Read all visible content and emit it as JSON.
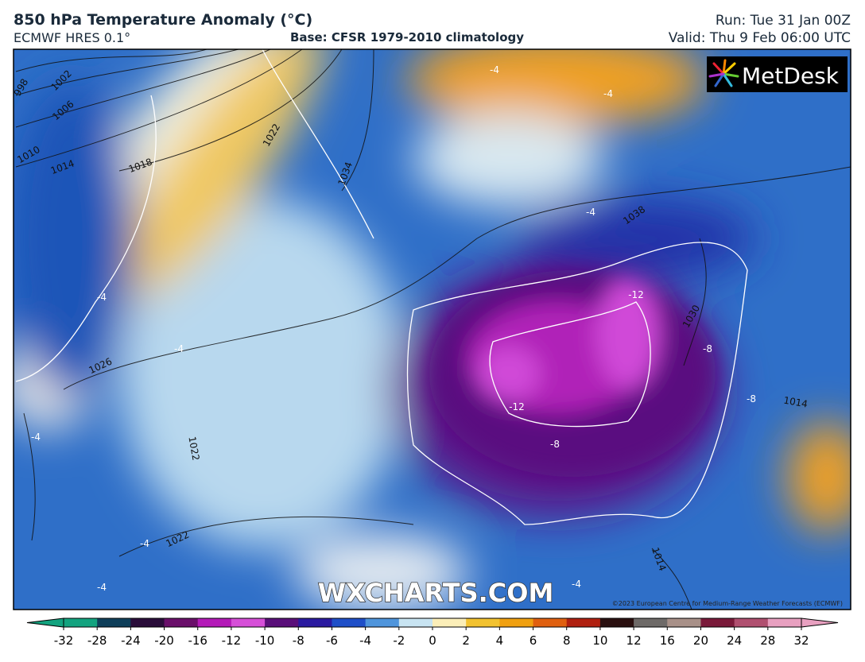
{
  "header": {
    "title": "850 hPa Temperature Anomaly (°C)",
    "model": "ECMWF HRES 0.1°",
    "base": "Base: CFSR 1979-2010 climatology",
    "run": "Run: Tue 31 Jan 00Z",
    "valid": "Valid: Thu 9 Feb 06:00 UTC"
  },
  "map": {
    "logo": "MetDesk",
    "watermark": "WXCHARTS.COM",
    "copyright": "©2023 European Centre for Medium-Range Weather Forecasts (ECMWF)",
    "contour_labels": [
      "998",
      "1002",
      "1006",
      "1010",
      "1014",
      "1018",
      "1022",
      "1034",
      "1026",
      "1022",
      "1022",
      "1038",
      "1030",
      "1014",
      "1014",
      "-4",
      "-4",
      "-4",
      "-4",
      "-4",
      "-4",
      "-4",
      "-4",
      "-4",
      "-8",
      "-8",
      "-8",
      "-12",
      "-12"
    ]
  },
  "colorbar": {
    "ticks": [
      -32,
      -28,
      -24,
      -20,
      -16,
      -12,
      -10,
      -8,
      -6,
      -4,
      -2,
      0,
      2,
      4,
      6,
      8,
      10,
      12,
      16,
      20,
      24,
      28,
      32
    ],
    "colors": [
      "#13a37f",
      "#0f3f5a",
      "#2a0d3a",
      "#6a0f6a",
      "#b41ab8",
      "#d64fd8",
      "#5a0f7a",
      "#2a1aa0",
      "#1f4fc8",
      "#4f95dc",
      "#c8e4f2",
      "#fbeeb8",
      "#f2c230",
      "#f0a010",
      "#e06010",
      "#b02010",
      "#2a1010",
      "#6e6a68",
      "#a89088",
      "#7a1a3a",
      "#b05070",
      "#e8a0c0"
    ]
  }
}
